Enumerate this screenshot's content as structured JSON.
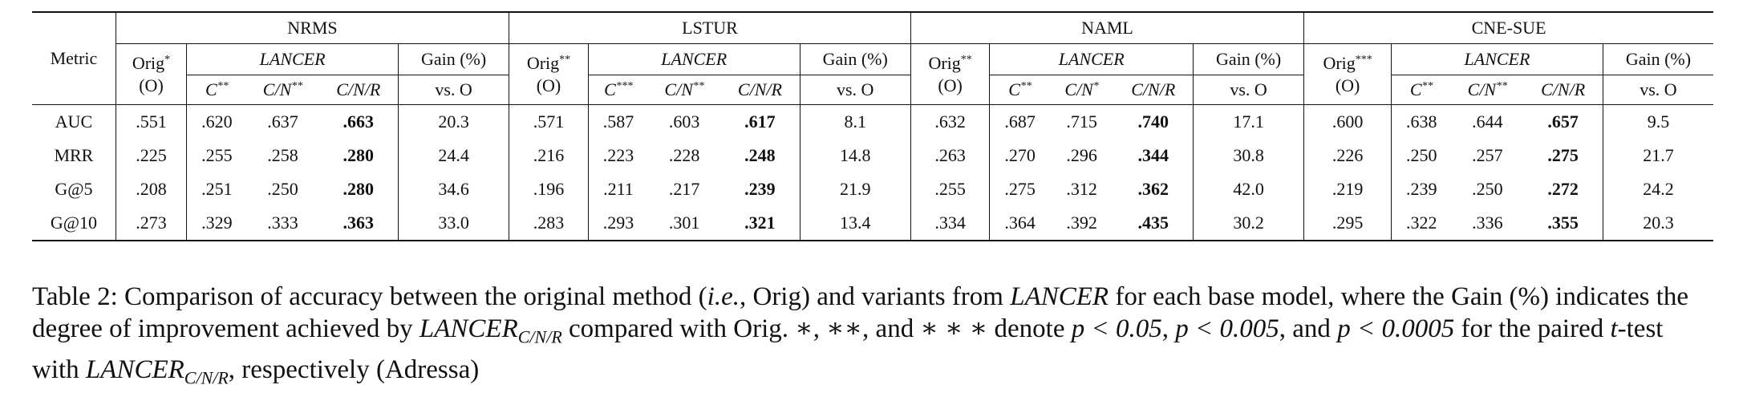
{
  "table": {
    "metric_header": "Metric",
    "models": [
      {
        "name": "NRMS",
        "orig": "Orig",
        "orig_sup": "*",
        "orig_o": "(O)",
        "lancer": "LANCER",
        "variants": [
          {
            "label": "C",
            "sup": "**"
          },
          {
            "label": "C/N",
            "sup": "**"
          },
          {
            "label": "C/N/R",
            "sup": ""
          }
        ],
        "gain": "Gain (%)",
        "vs": "vs. O"
      },
      {
        "name": "LSTUR",
        "orig": "Orig",
        "orig_sup": "**",
        "orig_o": "(O)",
        "lancer": "LANCER",
        "variants": [
          {
            "label": "C",
            "sup": "***"
          },
          {
            "label": "C/N",
            "sup": "**"
          },
          {
            "label": "C/N/R",
            "sup": ""
          }
        ],
        "gain": "Gain (%)",
        "vs": "vs. O"
      },
      {
        "name": "NAML",
        "orig": "Orig",
        "orig_sup": "**",
        "orig_o": "(O)",
        "lancer": "LANCER",
        "variants": [
          {
            "label": "C",
            "sup": "**"
          },
          {
            "label": "C/N",
            "sup": "*"
          },
          {
            "label": "C/N/R",
            "sup": ""
          }
        ],
        "gain": "Gain (%)",
        "vs": "vs. O"
      },
      {
        "name": "CNE-SUE",
        "orig": "Orig",
        "orig_sup": "***",
        "orig_o": "(O)",
        "lancer": "LANCER",
        "variants": [
          {
            "label": "C",
            "sup": "**"
          },
          {
            "label": "C/N",
            "sup": "**"
          },
          {
            "label": "C/N/R",
            "sup": ""
          }
        ],
        "gain": "Gain (%)",
        "vs": "vs. O"
      }
    ],
    "rows": [
      {
        "metric": "AUC",
        "cells": [
          [
            ".551",
            ".620",
            ".637",
            ".663",
            "20.3"
          ],
          [
            ".571",
            ".587",
            ".603",
            ".617",
            "8.1"
          ],
          [
            ".632",
            ".687",
            ".715",
            ".740",
            "17.1"
          ],
          [
            ".600",
            ".638",
            ".644",
            ".657",
            "9.5"
          ]
        ]
      },
      {
        "metric": "MRR",
        "cells": [
          [
            ".225",
            ".255",
            ".258",
            ".280",
            "24.4"
          ],
          [
            ".216",
            ".223",
            ".228",
            ".248",
            "14.8"
          ],
          [
            ".263",
            ".270",
            ".296",
            ".344",
            "30.8"
          ],
          [
            ".226",
            ".250",
            ".257",
            ".275",
            "21.7"
          ]
        ]
      },
      {
        "metric": "G@5",
        "cells": [
          [
            ".208",
            ".251",
            ".250",
            ".280",
            "34.6"
          ],
          [
            ".196",
            ".211",
            ".217",
            ".239",
            "21.9"
          ],
          [
            ".255",
            ".275",
            ".312",
            ".362",
            "42.0"
          ],
          [
            ".219",
            ".239",
            ".250",
            ".272",
            "24.2"
          ]
        ]
      },
      {
        "metric": "G@10",
        "cells": [
          [
            ".273",
            ".329",
            ".333",
            ".363",
            "33.0"
          ],
          [
            ".283",
            ".293",
            ".301",
            ".321",
            "13.4"
          ],
          [
            ".334",
            ".364",
            ".392",
            ".435",
            "30.2"
          ],
          [
            ".295",
            ".322",
            ".336",
            ".355",
            "20.3"
          ]
        ]
      }
    ]
  },
  "caption": {
    "part1": "Table 2: Comparison of accuracy between the original method (",
    "ie": "i.e.",
    "part2": ", Orig) and variants from ",
    "lancer1": "LANCER",
    "part3": " for each base model, where the Gain (%) indicates the degree of improvement achieved by ",
    "lancer2": "LANCER",
    "sub1": "C/N/R",
    "part4": " compared with Orig. ∗, ∗∗, and ∗ ∗ ∗ denote ",
    "p1": "p < 0.05",
    "sep1": ", ",
    "p2": "p < 0.005",
    "sep2": ", and ",
    "p3": "p < 0.0005",
    "part5": " for the paired ",
    "t": "t",
    "part6": "-test with ",
    "lancer3": "LANCER",
    "sub2": "C/N/R",
    "part7": ", respectively (Adressa)"
  }
}
